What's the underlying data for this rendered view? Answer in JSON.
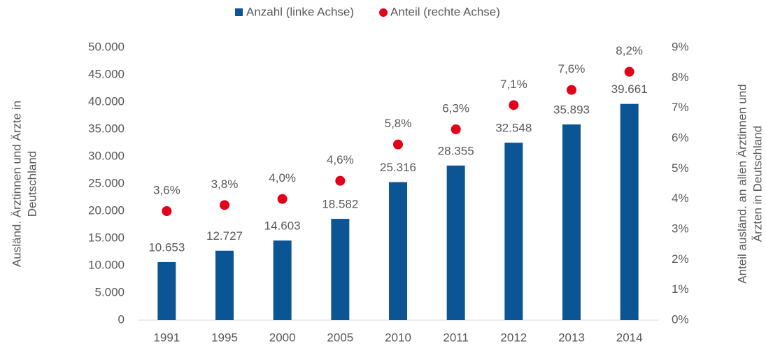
{
  "chart_data": {
    "type": "bar",
    "categories": [
      "1991",
      "1995",
      "2000",
      "2005",
      "2010",
      "2011",
      "2012",
      "2013",
      "2014"
    ],
    "series": [
      {
        "name": "Anzahl (linke Achse)",
        "type": "bar",
        "color": "#0b5595",
        "values": [
          10653,
          12727,
          14603,
          18582,
          25316,
          28355,
          32548,
          35893,
          39661
        ],
        "value_labels": [
          "10.653",
          "12.727",
          "14.603",
          "18.582",
          "25.316",
          "28.355",
          "32.548",
          "35.893",
          "39.661"
        ]
      },
      {
        "name": "Anteil (rechte Achse)",
        "type": "scatter",
        "axis": "y2",
        "color": "#e2001a",
        "values": [
          3.6,
          3.8,
          4.0,
          4.6,
          5.8,
          6.3,
          7.1,
          7.6,
          8.2
        ],
        "value_labels": [
          "3,6%",
          "3,8%",
          "4,0%",
          "4,6%",
          "5,8%",
          "6,3%",
          "7,1%",
          "7,6%",
          "8,2%"
        ]
      }
    ],
    "y_label": [
      "Ausländ. Ärztinnen und Ärzte in",
      "Deutschland"
    ],
    "y2_label": [
      "Anteil ausländ. an allen Ärztinnen und",
      "Ärzten in Deutschland"
    ],
    "ylim": [
      0,
      50000
    ],
    "yticks": [
      0,
      {
        "value": 5000,
        "label": "5.000"
      },
      {
        "value": 10000,
        "label": "10.000"
      },
      {
        "value": 15000,
        "label": "15.000"
      },
      {
        "value": 20000,
        "label": "20.000"
      },
      {
        "value": 25000,
        "label": "25.000"
      },
      {
        "value": 30000,
        "label": "30.000"
      },
      {
        "value": 35000,
        "label": "35.000"
      },
      {
        "value": 40000,
        "label": "40.000"
      },
      {
        "value": 45000,
        "label": "45.000"
      },
      {
        "value": 50000,
        "label": "50.000"
      }
    ],
    "y2lim": [
      0,
      9
    ],
    "y2ticks": [
      {
        "value": 0,
        "label": "0%"
      },
      {
        "value": 1,
        "label": "1%"
      },
      {
        "value": 2,
        "label": "2%"
      },
      {
        "value": 3,
        "label": "3%"
      },
      {
        "value": 4,
        "label": "4%"
      },
      {
        "value": 5,
        "label": "5%"
      },
      {
        "value": 6,
        "label": "6%"
      },
      {
        "value": 7,
        "label": "7%"
      },
      {
        "value": 8,
        "label": "8%"
      },
      {
        "value": 9,
        "label": "9%"
      }
    ],
    "legend": "top",
    "grid": false
  }
}
